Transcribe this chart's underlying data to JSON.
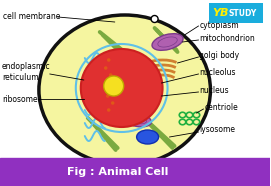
{
  "bg_color": "#ffffff",
  "cell_fill": "#f5f5a0",
  "cell_border": "#111111",
  "nucleus_fill": "#e03030",
  "nucleus_border": "#cc2020",
  "nucleolus_fill": "#f5e020",
  "nucleolus_border": "#c0a800",
  "er_color": "#60c0e8",
  "nuclear_envelope_color": "#60c0e8",
  "mitochondria_fill": "#b060b0",
  "mitochondria_border": "#7a3a8a",
  "golgi_color": "#d08030",
  "ribosome_color": "#e05818",
  "centriole_color": "#20b040",
  "lysosome_fill": "#2855e0",
  "lysosome_border": "#1030b0",
  "green_streak_color": "#7aaa40",
  "bottom_bar_color": "#9030c0",
  "bottom_text": "Fig : Animal Cell",
  "bottom_text_color": "#ffffff",
  "logo_bg": "#1aaddd",
  "logo_text1": "YB",
  "logo_text2": "STUDY",
  "labels": {
    "cell_membrane": "cell membrane",
    "cytoplasm": "cytoplasm",
    "mitochondrion": "mitochondrion",
    "golgi_body": "golgi body",
    "nucleolus": "nucleolus",
    "nucleus": "nucleus",
    "endoplasmic_reticulum": "endoplasmic\nreticulum",
    "ribosome": "ribosome",
    "centriole": "centriole",
    "lysosome": "lysosome"
  },
  "label_fontsize": 5.5,
  "title_fontsize": 8
}
